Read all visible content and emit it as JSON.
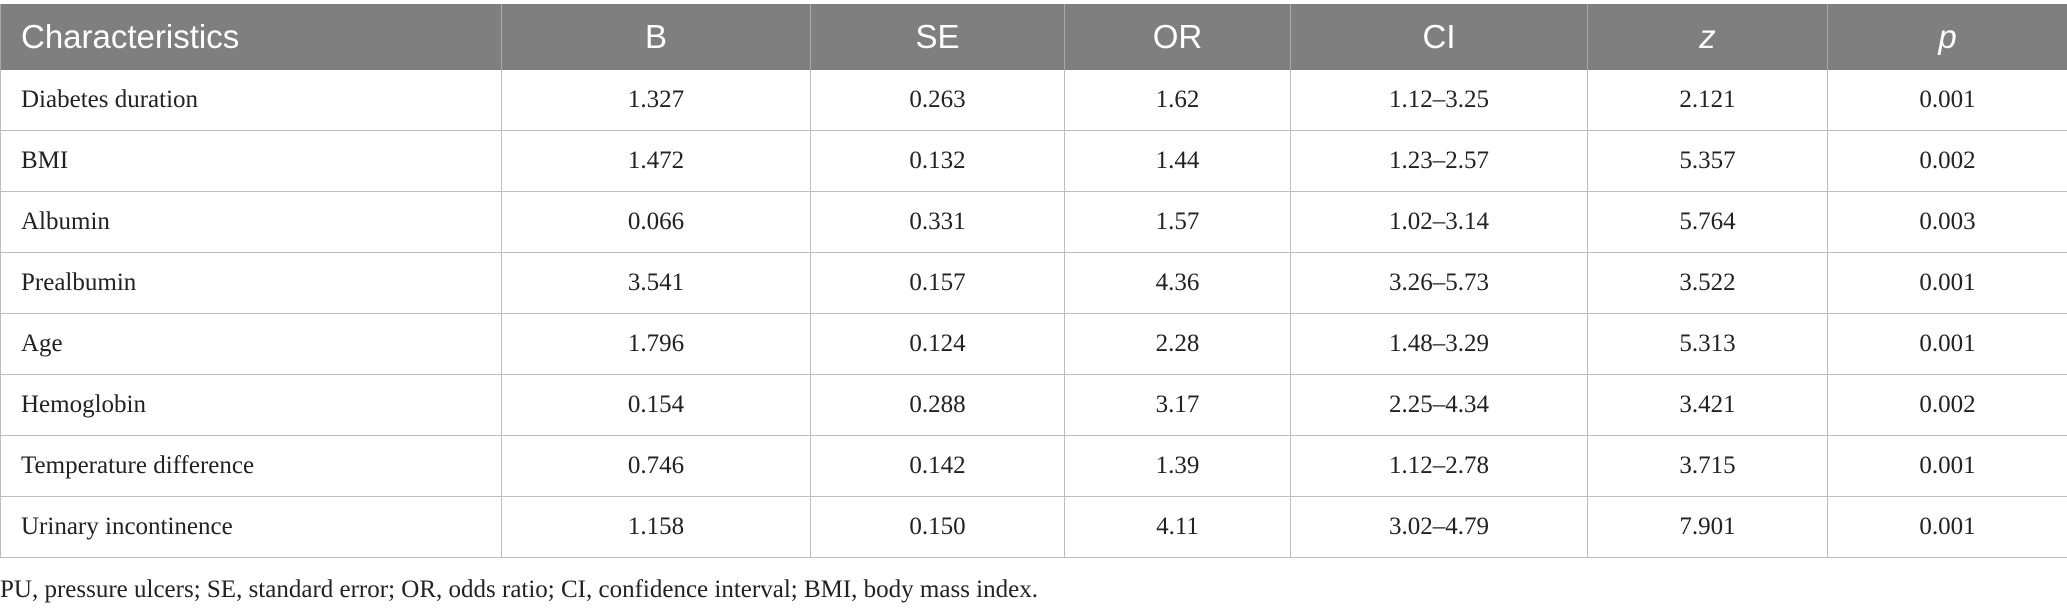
{
  "table": {
    "headers": [
      "Characteristics",
      "B",
      "SE",
      "OR",
      "CI",
      "z",
      "p"
    ],
    "rows": [
      [
        "Diabetes duration",
        "1.327",
        "0.263",
        "1.62",
        "1.12–3.25",
        "2.121",
        "0.001"
      ],
      [
        "BMI",
        "1.472",
        "0.132",
        "1.44",
        "1.23–2.57",
        "5.357",
        "0.002"
      ],
      [
        "Albumin",
        "0.066",
        "0.331",
        "1.57",
        "1.02–3.14",
        "5.764",
        "0.003"
      ],
      [
        "Prealbumin",
        "3.541",
        "0.157",
        "4.36",
        "3.26–5.73",
        "3.522",
        "0.001"
      ],
      [
        "Age",
        "1.796",
        "0.124",
        "2.28",
        "1.48–3.29",
        "5.313",
        "0.001"
      ],
      [
        "Hemoglobin",
        "0.154",
        "0.288",
        "3.17",
        "2.25–4.34",
        "3.421",
        "0.002"
      ],
      [
        "Temperature difference",
        "0.746",
        "0.142",
        "1.39",
        "1.12–2.78",
        "3.715",
        "0.001"
      ],
      [
        "Urinary incontinence",
        "1.158",
        "0.150",
        "4.11",
        "3.02–4.79",
        "7.901",
        "0.001"
      ]
    ]
  },
  "footnote": "PU, pressure ulcers; SE, standard error; OR, odds ratio; CI, confidence interval; BMI, body mass index.",
  "colors": {
    "header_bg": "#7f7f7f",
    "header_text": "#ffffff",
    "grid": "#bdbdbd"
  }
}
